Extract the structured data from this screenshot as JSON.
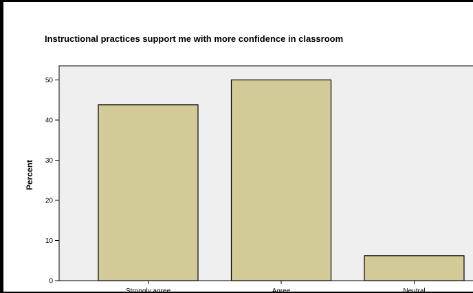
{
  "chart_data": {
    "type": "bar",
    "title": "Instructional practices support me with more confidence in classroom",
    "xlabel": "",
    "ylabel": "Percent",
    "categories": [
      "Strongly agree",
      "Agree",
      "Neutral"
    ],
    "values": [
      43.8,
      50.0,
      6.2
    ],
    "ylim": [
      0,
      53.5
    ],
    "yticks": [
      "0",
      "10",
      "20",
      "30",
      "40",
      "50"
    ],
    "grid": false,
    "legend": "none",
    "colors": {
      "bar_fill": "#d3cb97",
      "bar_stroke": "#000000",
      "plot_background": "#efefef"
    }
  }
}
